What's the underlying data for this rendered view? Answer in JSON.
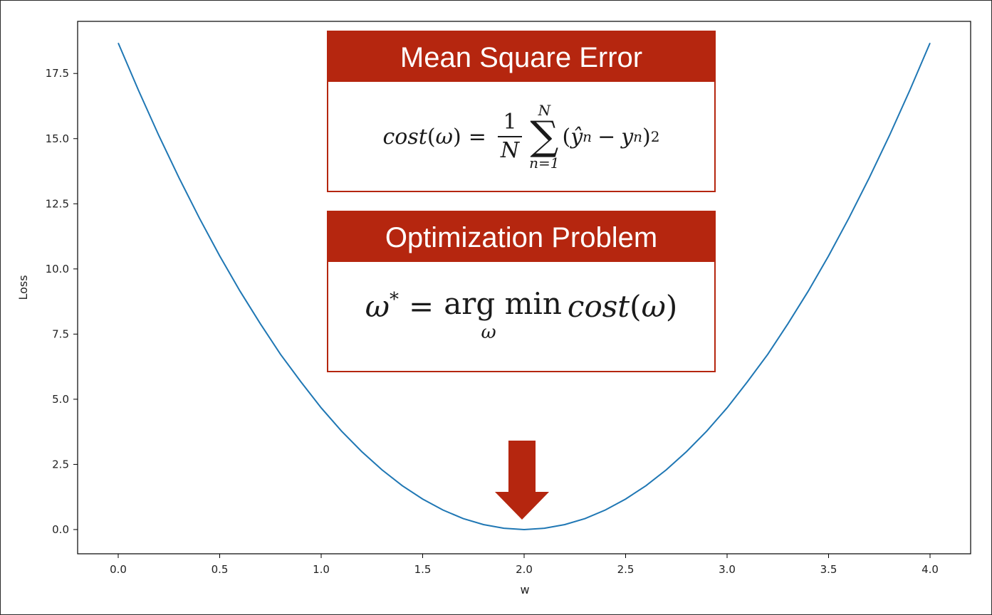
{
  "chart_data": {
    "type": "line",
    "xlabel": "w",
    "ylabel": "Loss",
    "xlim": [
      -0.2,
      4.2
    ],
    "ylim": [
      -0.93,
      19.5
    ],
    "xticks": [
      "0.0",
      "0.5",
      "1.0",
      "1.5",
      "2.0",
      "2.5",
      "3.0",
      "3.5",
      "4.0"
    ],
    "yticks": [
      "0.0",
      "2.5",
      "5.0",
      "7.5",
      "10.0",
      "12.5",
      "15.0",
      "17.5"
    ],
    "series": [
      {
        "color": "#1f77b4",
        "x": [
          0.0,
          0.1,
          0.2,
          0.3,
          0.4,
          0.5,
          0.6,
          0.7,
          0.8,
          0.9,
          1.0,
          1.1,
          1.2,
          1.3,
          1.4,
          1.5,
          1.6,
          1.7,
          1.8,
          1.9,
          2.0,
          2.1,
          2.2,
          2.3,
          2.4,
          2.5,
          2.6,
          2.7,
          2.8,
          2.9,
          3.0,
          3.1,
          3.2,
          3.3,
          3.4,
          3.5,
          3.6,
          3.7,
          3.8,
          3.9,
          4.0
        ],
        "y": [
          18.67,
          16.85,
          15.12,
          13.49,
          11.95,
          10.5,
          9.15,
          7.9,
          6.72,
          5.67,
          4.67,
          3.78,
          2.99,
          2.29,
          1.68,
          1.17,
          0.75,
          0.42,
          0.19,
          0.05,
          0.0,
          0.05,
          0.19,
          0.42,
          0.75,
          1.17,
          1.68,
          2.29,
          2.99,
          3.78,
          4.67,
          5.67,
          6.72,
          7.9,
          9.15,
          10.5,
          11.95,
          13.49,
          15.12,
          16.85,
          18.67
        ]
      }
    ]
  },
  "panels": {
    "mse": {
      "title": "Mean Square Error",
      "cost": "cost",
      "omega": "ω",
      "one": "1",
      "N": "N",
      "sigma": "∑",
      "sum_top": "N",
      "sum_bottom": "n=1",
      "yhat": "ŷ",
      "y": "y",
      "n": "n",
      "sq": "2"
    },
    "opt": {
      "title": "Optimization Problem",
      "omega_star": "ω",
      "star": "*",
      "argmin": "arg min",
      "under": "ω",
      "cost": "cost",
      "omega": "ω"
    }
  },
  "arrow": {
    "color": "#b5260f"
  },
  "colors": {
    "accent": "#b5260f",
    "line": "#1f77b4"
  }
}
